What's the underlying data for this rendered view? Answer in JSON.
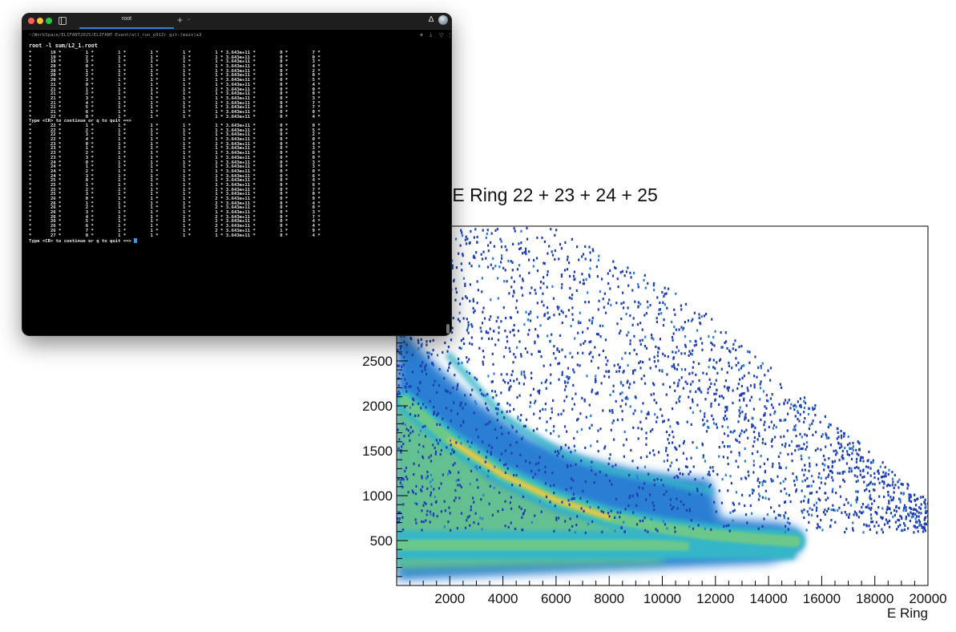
{
  "terminal": {
    "tab_title": "root",
    "new_tab": "+",
    "tab_menu": "⌄",
    "cwd": "~/WorkSpace/ELIFANT2025/ELIFANT-Event/all_run_p91Zr git:(main)±3",
    "command": "root -l sum/L2_1.root",
    "prompt_text": "Type <CR> to continue or q to quit ==>",
    "rows_a": [
      [
        "19",
        "1",
        "1",
        "1",
        "1",
        "1",
        "3.643e+11",
        "0",
        "7"
      ],
      [
        "19",
        "2",
        "1",
        "1",
        "1",
        "1",
        "3.643e+11",
        "0",
        "0"
      ],
      [
        "19",
        "3",
        "1",
        "1",
        "1",
        "1",
        "3.643e+11",
        "0",
        "3"
      ],
      [
        "20",
        "0",
        "1",
        "1",
        "1",
        "1",
        "3.643e+11",
        "0",
        "4"
      ],
      [
        "20",
        "1",
        "1",
        "1",
        "1",
        "1",
        "3.643e+11",
        "0",
        "2"
      ],
      [
        "20",
        "2",
        "1",
        "1",
        "1",
        "1",
        "3.643e+11",
        "0",
        "0"
      ],
      [
        "20",
        "3",
        "1",
        "1",
        "1",
        "1",
        "3.643e+11",
        "0",
        "5"
      ],
      [
        "21",
        "0",
        "1",
        "1",
        "1",
        "1",
        "3.643e+11",
        "0",
        "4"
      ],
      [
        "21",
        "1",
        "1",
        "1",
        "1",
        "1",
        "3.643e+11",
        "0",
        "0"
      ],
      [
        "21",
        "2",
        "1",
        "1",
        "1",
        "1",
        "3.643e+11",
        "0",
        "0"
      ],
      [
        "21",
        "3",
        "1",
        "1",
        "1",
        "1",
        "3.643e+11",
        "0",
        "3"
      ],
      [
        "21",
        "4",
        "1",
        "1",
        "1",
        "1",
        "3.643e+11",
        "0",
        "7"
      ],
      [
        "21",
        "5",
        "1",
        "1",
        "1",
        "1",
        "3.643e+11",
        "0",
        "7"
      ],
      [
        "21",
        "6",
        "1",
        "1",
        "1",
        "1",
        "3.643e+11",
        "0",
        "0"
      ],
      [
        "22",
        "0",
        "1",
        "1",
        "1",
        "1",
        "3.643e+11",
        "0",
        "4"
      ]
    ],
    "rows_b": [
      [
        "22",
        "1",
        "1",
        "1",
        "1",
        "1",
        "3.643e+11",
        "0",
        "0"
      ],
      [
        "22",
        "2",
        "1",
        "1",
        "1",
        "1",
        "3.643e+11",
        "0",
        "5"
      ],
      [
        "22",
        "3",
        "1",
        "1",
        "1",
        "1",
        "3.643e+11",
        "0",
        "2"
      ],
      [
        "22",
        "4",
        "1",
        "1",
        "1",
        "1",
        "3.643e+11",
        "0",
        "0"
      ],
      [
        "23",
        "0",
        "1",
        "1",
        "1",
        "1",
        "3.643e+11",
        "0",
        "4"
      ],
      [
        "23",
        "1",
        "1",
        "1",
        "1",
        "1",
        "3.643e+11",
        "0",
        "3"
      ],
      [
        "23",
        "2",
        "1",
        "1",
        "1",
        "1",
        "3.643e+11",
        "0",
        "6"
      ],
      [
        "23",
        "3",
        "1",
        "1",
        "1",
        "1",
        "3.643e+11",
        "0",
        "0"
      ],
      [
        "24",
        "0",
        "1",
        "1",
        "1",
        "1",
        "3.643e+11",
        "0",
        "3"
      ],
      [
        "24",
        "1",
        "1",
        "1",
        "1",
        "1",
        "3.643e+11",
        "0",
        "3"
      ],
      [
        "24",
        "2",
        "1",
        "1",
        "1",
        "1",
        "3.643e+11",
        "0",
        "0"
      ],
      [
        "24",
        "3",
        "1",
        "1",
        "1",
        "1",
        "3.643e+11",
        "0",
        "6"
      ],
      [
        "25",
        "0",
        "1",
        "1",
        "1",
        "1",
        "3.643e+11",
        "0",
        "4"
      ],
      [
        "25",
        "1",
        "1",
        "1",
        "1",
        "1",
        "3.643e+11",
        "0",
        "6"
      ],
      [
        "25",
        "2",
        "1",
        "1",
        "1",
        "1",
        "3.643e+11",
        "0",
        "7"
      ],
      [
        "25",
        "3",
        "1",
        "1",
        "1",
        "1",
        "3.643e+11",
        "0",
        "0"
      ],
      [
        "26",
        "0",
        "1",
        "1",
        "1",
        "2",
        "3.643e+11",
        "0",
        "9"
      ],
      [
        "26",
        "1",
        "1",
        "1",
        "1",
        "2",
        "3.643e+11",
        "0",
        "4"
      ],
      [
        "26",
        "2",
        "1",
        "1",
        "1",
        "2",
        "3.643e+11",
        "0",
        "0"
      ],
      [
        "26",
        "3",
        "1",
        "1",
        "1",
        "1",
        "3.643e+11",
        "0",
        "3"
      ],
      [
        "26",
        "4",
        "1",
        "1",
        "1",
        "2",
        "3.643e+11",
        "0",
        "7"
      ],
      [
        "26",
        "5",
        "1",
        "1",
        "1",
        "2",
        "3.643e+11",
        "0",
        "4"
      ],
      [
        "26",
        "6",
        "1",
        "1",
        "1",
        "2",
        "3.643e+11",
        "0",
        "4"
      ],
      [
        "26",
        "7",
        "1",
        "1",
        "1",
        "2",
        "3.643e+11",
        "1",
        "9"
      ],
      [
        "27",
        "0",
        "1",
        "1",
        "1",
        "1",
        "3.643e+11",
        "0",
        "4"
      ]
    ]
  },
  "chart_data": {
    "type": "heatmap",
    "title": "dE Ring 15 - E Ring 22 + 23 + 24 + 25",
    "xlabel": "E Ring",
    "ylabel": "",
    "xlim": [
      0,
      20000
    ],
    "ylim": [
      0,
      4000
    ],
    "x_ticks": [
      2000,
      4000,
      6000,
      8000,
      10000,
      12000,
      14000,
      16000,
      18000,
      20000
    ],
    "y_ticks": [
      500,
      1000,
      1500,
      2000,
      2500
    ],
    "colormap": [
      "#1f3fb0",
      "#2a7fd4",
      "#36b6c8",
      "#6cc88a",
      "#e6c74a"
    ],
    "features": {
      "main_band": [
        [
          300,
          2050
        ],
        [
          2000,
          1620
        ],
        [
          4000,
          1230
        ],
        [
          6000,
          950
        ],
        [
          8000,
          760
        ],
        [
          10000,
          640
        ],
        [
          12000,
          560
        ],
        [
          14000,
          510
        ],
        [
          15000,
          490
        ]
      ],
      "outer_band": [
        [
          2000,
          2550
        ],
        [
          4000,
          1880
        ],
        [
          6000,
          1500
        ],
        [
          8000,
          1280
        ],
        [
          10000,
          1170
        ],
        [
          11800,
          1050
        ]
      ],
      "floor_band_y": 450,
      "endpoint_x": 15000,
      "peak_x": 3500
    }
  }
}
